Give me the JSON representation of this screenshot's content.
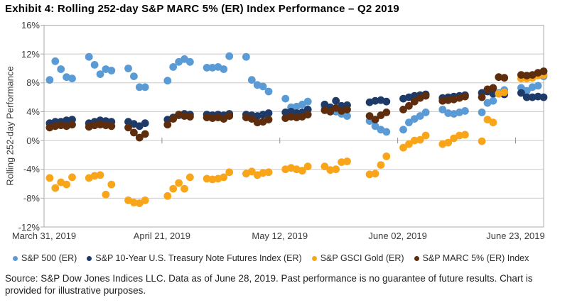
{
  "title": "Exhibit 4: Rolling 252-day S&P MARC 5% (ER) Index Performance – Q2 2019",
  "source": {
    "line1": "Source: S&P Dow Jones Indices LLC. Data as of June 28, 2019. Past performance is no guarantee of future results. Chart is",
    "line2": "provided for illustrative purposes."
  },
  "chart_data": {
    "type": "scatter",
    "title": "Exhibit 4: Rolling 252-day S&P MARC 5% (ER) Index Performance – Q2 2019",
    "xlabel": "",
    "ylabel": "Rolling 252-day Performance",
    "ylim": [
      -12,
      16
    ],
    "grid": true,
    "legend_position": "bottom",
    "x_unit": "calendar days after March 31, 2019 (trading days only plotted)",
    "x_range_days": [
      0,
      89
    ],
    "y_ticks": [
      {
        "label": "16%",
        "value": 16
      },
      {
        "label": "12%",
        "value": 12
      },
      {
        "label": "8%",
        "value": 8
      },
      {
        "label": "4%",
        "value": 4
      },
      {
        "label": "0%",
        "value": 0
      },
      {
        "label": "-4%",
        "value": -4
      },
      {
        "label": "-8%",
        "value": -8
      },
      {
        "label": "-12%",
        "value": -12
      }
    ],
    "x_ticks": [
      {
        "label": "March 31, 2019",
        "day": 0
      },
      {
        "label": "April 21, 2019",
        "day": 21
      },
      {
        "label": "May 12, 2019",
        "day": 42
      },
      {
        "label": "June 02, 2019",
        "day": 63
      },
      {
        "label": "June 23, 2019",
        "day": 84
      }
    ],
    "series": [
      {
        "name": "S&P 500 (ER)",
        "color": "#5B9BD5",
        "points": [
          [
            1,
            8.4
          ],
          [
            2,
            11.0
          ],
          [
            3,
            9.9
          ],
          [
            4,
            8.8
          ],
          [
            5,
            8.6
          ],
          [
            8,
            11.6
          ],
          [
            9,
            10.5
          ],
          [
            10,
            9.2
          ],
          [
            11,
            9.9
          ],
          [
            12,
            9.7
          ],
          [
            15,
            10.0
          ],
          [
            16,
            8.9
          ],
          [
            17,
            7.4
          ],
          [
            18,
            7.4
          ],
          [
            22,
            8.3
          ],
          [
            23,
            10.2
          ],
          [
            24,
            10.9
          ],
          [
            25,
            11.3
          ],
          [
            26,
            10.9
          ],
          [
            29,
            10.1
          ],
          [
            30,
            10.1
          ],
          [
            31,
            10.2
          ],
          [
            32,
            9.9
          ],
          [
            33,
            11.7
          ],
          [
            36,
            11.6
          ],
          [
            37,
            8.4
          ],
          [
            38,
            7.7
          ],
          [
            39,
            7.5
          ],
          [
            40,
            6.8
          ],
          [
            43,
            5.8
          ],
          [
            44,
            4.6
          ],
          [
            45,
            4.7
          ],
          [
            46,
            5.0
          ],
          [
            47,
            5.4
          ],
          [
            50,
            4.7
          ],
          [
            51,
            4.4
          ],
          [
            52,
            4.0
          ],
          [
            53,
            3.7
          ],
          [
            54,
            3.4
          ],
          [
            58,
            2.7
          ],
          [
            59,
            2.0
          ],
          [
            60,
            1.5
          ],
          [
            61,
            1.2
          ],
          [
            64,
            1.5
          ],
          [
            65,
            2.5
          ],
          [
            66,
            3.0
          ],
          [
            67,
            3.4
          ],
          [
            68,
            3.9
          ],
          [
            71,
            4.3
          ],
          [
            72,
            3.8
          ],
          [
            73,
            3.7
          ],
          [
            74,
            3.9
          ],
          [
            75,
            4.1
          ],
          [
            78,
            3.9
          ],
          [
            79,
            5.2
          ],
          [
            80,
            5.5
          ],
          [
            81,
            6.6
          ],
          [
            82,
            7.0
          ],
          [
            85,
            7.3
          ],
          [
            86,
            6.9
          ],
          [
            87,
            7.4
          ],
          [
            88,
            7.6
          ],
          [
            89,
            8.9
          ]
        ]
      },
      {
        "name": "S&P 10-Year U.S. Treasury Note Futures Index (ER)",
        "color": "#1E3A68",
        "points": [
          [
            1,
            2.4
          ],
          [
            2,
            2.6
          ],
          [
            3,
            2.6
          ],
          [
            4,
            2.8
          ],
          [
            5,
            2.9
          ],
          [
            8,
            2.4
          ],
          [
            9,
            2.6
          ],
          [
            10,
            2.8
          ],
          [
            11,
            2.7
          ],
          [
            12,
            2.6
          ],
          [
            15,
            2.6
          ],
          [
            16,
            2.3
          ],
          [
            17,
            2.0
          ],
          [
            18,
            2.4
          ],
          [
            22,
            2.9
          ],
          [
            23,
            3.2
          ],
          [
            24,
            3.5
          ],
          [
            25,
            3.7
          ],
          [
            26,
            3.6
          ],
          [
            29,
            3.6
          ],
          [
            30,
            3.5
          ],
          [
            31,
            3.6
          ],
          [
            32,
            3.5
          ],
          [
            33,
            3.7
          ],
          [
            36,
            3.6
          ],
          [
            37,
            3.5
          ],
          [
            38,
            3.4
          ],
          [
            39,
            3.6
          ],
          [
            40,
            3.8
          ],
          [
            43,
            3.9
          ],
          [
            44,
            4.0
          ],
          [
            45,
            3.8
          ],
          [
            46,
            3.9
          ],
          [
            47,
            4.3
          ],
          [
            50,
            5.0
          ],
          [
            51,
            4.6
          ],
          [
            52,
            5.5
          ],
          [
            53,
            4.8
          ],
          [
            54,
            4.9
          ],
          [
            58,
            5.3
          ],
          [
            59,
            5.5
          ],
          [
            60,
            5.6
          ],
          [
            61,
            5.4
          ],
          [
            64,
            5.8
          ],
          [
            65,
            6.0
          ],
          [
            66,
            6.2
          ],
          [
            67,
            6.3
          ],
          [
            68,
            6.4
          ],
          [
            71,
            5.9
          ],
          [
            72,
            6.0
          ],
          [
            73,
            6.1
          ],
          [
            74,
            6.2
          ],
          [
            75,
            6.3
          ],
          [
            78,
            6.6
          ],
          [
            79,
            6.8
          ],
          [
            80,
            6.5
          ],
          [
            81,
            6.5
          ],
          [
            82,
            6.4
          ],
          [
            85,
            6.6
          ],
          [
            86,
            6.0
          ],
          [
            87,
            6.0
          ],
          [
            88,
            6.1
          ],
          [
            89,
            6.0
          ]
        ]
      },
      {
        "name": "S&P GSCI Gold (ER)",
        "color": "#F9A51A",
        "points": [
          [
            1,
            -5.2
          ],
          [
            2,
            -6.6
          ],
          [
            3,
            -5.8
          ],
          [
            4,
            -6.1
          ],
          [
            5,
            -5.1
          ],
          [
            8,
            -5.2
          ],
          [
            9,
            -4.9
          ],
          [
            10,
            -4.8
          ],
          [
            11,
            -7.5
          ],
          [
            12,
            -6.1
          ],
          [
            15,
            -8.3
          ],
          [
            16,
            -8.6
          ],
          [
            17,
            -8.7
          ],
          [
            18,
            -8.3
          ],
          [
            22,
            -7.7
          ],
          [
            23,
            -6.7
          ],
          [
            24,
            -5.9
          ],
          [
            25,
            -6.7
          ],
          [
            26,
            -5.1
          ],
          [
            29,
            -5.3
          ],
          [
            30,
            -5.4
          ],
          [
            31,
            -5.3
          ],
          [
            32,
            -5.1
          ],
          [
            33,
            -4.4
          ],
          [
            36,
            -4.6
          ],
          [
            37,
            -4.3
          ],
          [
            38,
            -4.8
          ],
          [
            39,
            -4.5
          ],
          [
            40,
            -4.4
          ],
          [
            43,
            -4.0
          ],
          [
            44,
            -3.8
          ],
          [
            45,
            -4.0
          ],
          [
            46,
            -4.2
          ],
          [
            47,
            -3.6
          ],
          [
            50,
            -3.6
          ],
          [
            51,
            -4.1
          ],
          [
            52,
            -4.0
          ],
          [
            53,
            -3.0
          ],
          [
            54,
            -2.9
          ],
          [
            58,
            -4.7
          ],
          [
            59,
            -4.6
          ],
          [
            60,
            -3.4
          ],
          [
            61,
            -2.2
          ],
          [
            64,
            -1.0
          ],
          [
            65,
            -0.5
          ],
          [
            66,
            0.0
          ],
          [
            67,
            0.1
          ],
          [
            68,
            0.7
          ],
          [
            71,
            -0.5
          ],
          [
            72,
            -0.3
          ],
          [
            73,
            0.3
          ],
          [
            74,
            0.7
          ],
          [
            75,
            0.8
          ],
          [
            78,
            -0.1
          ],
          [
            79,
            2.9
          ],
          [
            80,
            2.5
          ],
          [
            81,
            6.5
          ],
          [
            82,
            6.7
          ],
          [
            85,
            8.6
          ],
          [
            86,
            8.6
          ],
          [
            87,
            8.7
          ],
          [
            88,
            9.0
          ],
          [
            89,
            9.1
          ]
        ]
      },
      {
        "name": "S&P MARC 5% (ER) Index",
        "color": "#5E2D0D",
        "points": [
          [
            1,
            1.8
          ],
          [
            2,
            2.0
          ],
          [
            3,
            2.1
          ],
          [
            4,
            2.0
          ],
          [
            5,
            2.2
          ],
          [
            8,
            1.9
          ],
          [
            9,
            2.1
          ],
          [
            10,
            2.2
          ],
          [
            11,
            2.1
          ],
          [
            12,
            2.0
          ],
          [
            15,
            1.8
          ],
          [
            16,
            1.1
          ],
          [
            17,
            0.4
          ],
          [
            18,
            0.9
          ],
          [
            22,
            2.2
          ],
          [
            23,
            3.0
          ],
          [
            24,
            3.6
          ],
          [
            25,
            3.4
          ],
          [
            26,
            3.3
          ],
          [
            29,
            3.2
          ],
          [
            30,
            3.1
          ],
          [
            31,
            3.2
          ],
          [
            32,
            3.0
          ],
          [
            33,
            3.4
          ],
          [
            36,
            3.2
          ],
          [
            37,
            3.0
          ],
          [
            38,
            2.5
          ],
          [
            39,
            2.6
          ],
          [
            40,
            2.9
          ],
          [
            43,
            3.1
          ],
          [
            44,
            3.3
          ],
          [
            45,
            3.2
          ],
          [
            46,
            3.3
          ],
          [
            47,
            3.6
          ],
          [
            50,
            4.2
          ],
          [
            51,
            4.0
          ],
          [
            52,
            4.5
          ],
          [
            53,
            4.1
          ],
          [
            54,
            4.3
          ],
          [
            58,
            3.4
          ],
          [
            59,
            2.9
          ],
          [
            60,
            3.5
          ],
          [
            61,
            3.9
          ],
          [
            64,
            4.3
          ],
          [
            65,
            4.8
          ],
          [
            66,
            5.4
          ],
          [
            67,
            5.9
          ],
          [
            68,
            6.2
          ],
          [
            71,
            5.5
          ],
          [
            72,
            5.6
          ],
          [
            73,
            5.7
          ],
          [
            74,
            5.9
          ],
          [
            75,
            6.1
          ],
          [
            78,
            6.0
          ],
          [
            79,
            7.1
          ],
          [
            80,
            7.3
          ],
          [
            81,
            8.8
          ],
          [
            82,
            8.7
          ],
          [
            85,
            9.1
          ],
          [
            86,
            9.0
          ],
          [
            87,
            9.1
          ],
          [
            88,
            9.4
          ],
          [
            89,
            9.6
          ]
        ]
      }
    ],
    "style": {
      "grid_color": "#C9C9C9",
      "frame_color": "#ABABAB",
      "tick_color": "#8F8F8F",
      "marker_radius_px": 5.4
    }
  }
}
